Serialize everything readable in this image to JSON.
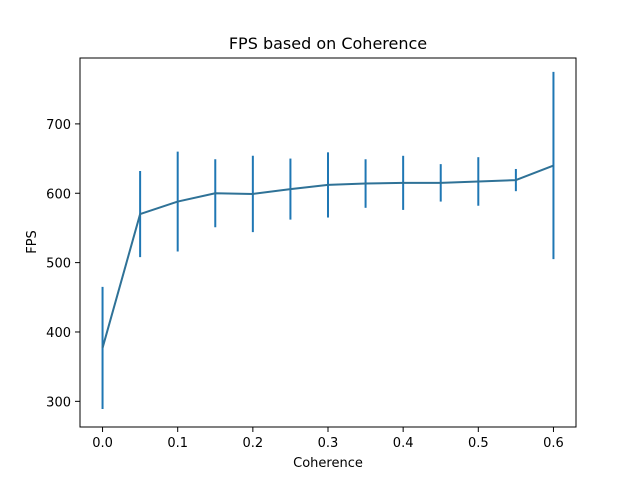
{
  "chart_data": {
    "type": "line",
    "title": "FPS based on Coherence",
    "xlabel": "Coherence",
    "ylabel": "FPS",
    "xlim": [
      -0.03,
      0.63
    ],
    "ylim": [
      263,
      795
    ],
    "xticks": [
      0.0,
      0.1,
      0.2,
      0.3,
      0.4,
      0.5,
      0.6
    ],
    "xtick_labels": [
      "0.0",
      "0.1",
      "0.2",
      "0.3",
      "0.4",
      "0.5",
      "0.6"
    ],
    "yticks": [
      300,
      400,
      500,
      600,
      700
    ],
    "ytick_labels": [
      "300",
      "400",
      "500",
      "600",
      "700"
    ],
    "grid": false,
    "legend": "none",
    "series": [
      {
        "color": "#1f77b4",
        "line_color": "#2f7297",
        "x": [
          0.0,
          0.05,
          0.1,
          0.15,
          0.2,
          0.25,
          0.3,
          0.35,
          0.4,
          0.45,
          0.5,
          0.55,
          0.6
        ],
        "y": [
          377,
          570,
          588,
          600,
          599,
          606,
          612,
          614,
          615,
          615,
          617,
          619,
          640
        ],
        "error": [
          88,
          62,
          72,
          49,
          55,
          44,
          47,
          35,
          39,
          27,
          35,
          16,
          135
        ]
      }
    ]
  }
}
